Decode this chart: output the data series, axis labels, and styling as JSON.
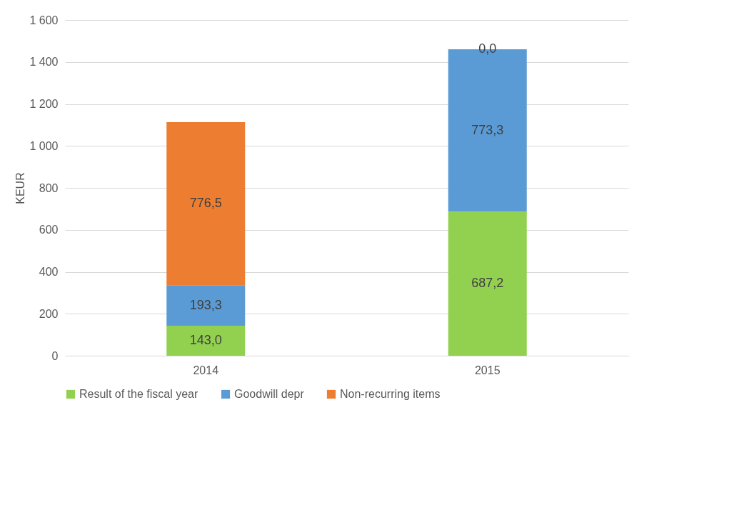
{
  "chart_data": {
    "type": "bar",
    "stacked": true,
    "ylabel": "KEUR",
    "categories": [
      "2014",
      "2015"
    ],
    "series": [
      {
        "name": "Result of the fiscal year",
        "color": "#92d050",
        "values": [
          143.0,
          687.2
        ],
        "value_labels": [
          "143,0",
          "687,2"
        ]
      },
      {
        "name": "Goodwill depr",
        "color": "#5b9bd5",
        "values": [
          193.3,
          773.3
        ],
        "value_labels": [
          "193,3",
          "773,3"
        ]
      },
      {
        "name": "Non-recurring items",
        "color": "#ed7d31",
        "values": [
          776.5,
          0.0
        ],
        "value_labels": [
          "776,5",
          "0,0"
        ]
      }
    ],
    "ylim": [
      0,
      1600
    ],
    "yticks": [
      0,
      200,
      400,
      600,
      800,
      {
        "value": 1000,
        "label": "1 000"
      },
      {
        "value": 1200,
        "label": "1 200"
      },
      {
        "value": 1400,
        "label": "1 400"
      },
      {
        "value": 1600,
        "label": "1 600"
      }
    ],
    "grid": "y",
    "legend": "bottom"
  }
}
